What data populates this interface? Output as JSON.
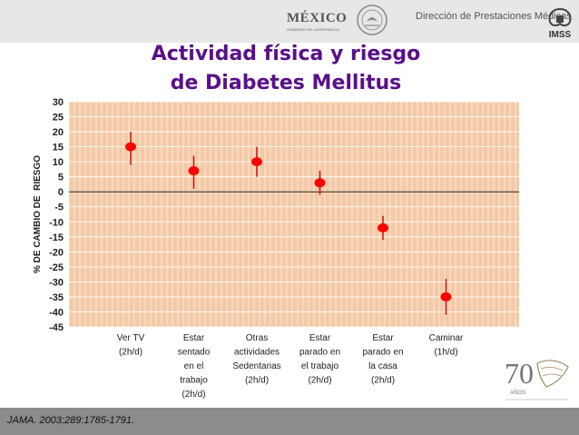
{
  "header": {
    "logo_word": "MÉXICO",
    "logo_sub": "GOBIERNO DE LA REPÚBLICA",
    "department": "Dirección de Prestaciones Médicas",
    "institution": "IMSS"
  },
  "slide": {
    "title_line1": "Actividad física y riesgo",
    "title_line2": "de Diabetes Mellitus",
    "citation": "JAMA. 2003;289:1785-1791.",
    "anniversary_number": "70",
    "anniversary_word": "AÑOS"
  },
  "colors": {
    "title": "#5a0f8a",
    "plot_background": "#f4c9a6",
    "marker": "#ff0000",
    "error_bar": "#d40000"
  },
  "chart_data": {
    "type": "scatter",
    "title": "Actividad física y riesgo de Diabetes Mellitus",
    "ylabel": "% DE CAMBIO DE  RIESGO",
    "xlabel": "",
    "ylim": [
      -45,
      30
    ],
    "yticks": [
      30,
      25,
      20,
      15,
      10,
      5,
      0,
      -5,
      -10,
      -15,
      -20,
      -25,
      -30,
      -35,
      -40,
      -45
    ],
    "grid": true,
    "categories": [
      [
        "Ver TV",
        "(2h/d)"
      ],
      [
        "Estar",
        "sentado",
        "en el",
        "trabajo",
        "(2h/d)"
      ],
      [
        "Otras",
        "actividades",
        "Sedentarias",
        "(2h/d)"
      ],
      [
        "Estar",
        "parado en",
        "el trabajo",
        "(2h/d)"
      ],
      [
        "Estar",
        "parado en",
        "la casa",
        "(2h/d)"
      ],
      [
        "Caminar",
        "(1h/d)"
      ]
    ],
    "values": [
      15,
      7,
      10,
      3,
      -12,
      -35
    ],
    "ci_low": [
      9,
      1,
      5,
      -1,
      -16,
      -41
    ],
    "ci_high": [
      20,
      12,
      15,
      7,
      -8,
      -29
    ]
  }
}
